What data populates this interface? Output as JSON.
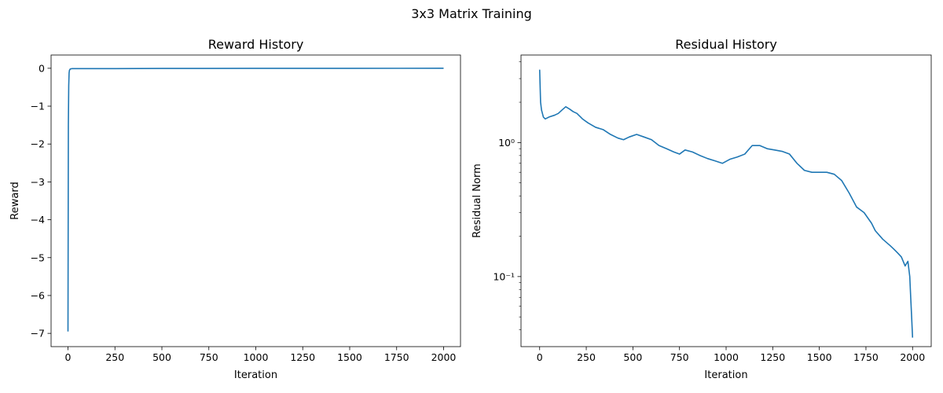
{
  "figure": {
    "suptitle": "3x3 Matrix Training"
  },
  "chart_data": [
    {
      "type": "line",
      "title": "Reward History",
      "xlabel": "Iteration",
      "ylabel": "Reward",
      "xlim": [
        -90,
        2090
      ],
      "ylim": [
        -7.35,
        0.35
      ],
      "xscale": "linear",
      "yscale": "linear",
      "xticks": [
        0,
        250,
        500,
        750,
        1000,
        1250,
        1500,
        1750,
        2000
      ],
      "xtick_labels": [
        "0",
        "250",
        "500",
        "750",
        "1000",
        "1250",
        "1500",
        "1750",
        "2000"
      ],
      "yticks": [
        0,
        -1,
        -2,
        -3,
        -4,
        -5,
        -6,
        -7
      ],
      "ytick_labels": [
        "0",
        "−1",
        "−2",
        "−3",
        "−4",
        "−5",
        "−6",
        "−7"
      ],
      "grid": false,
      "line_color": "#1f77b4",
      "series": [
        {
          "x": [
            0,
            2,
            4,
            6,
            8,
            12,
            20,
            40,
            100,
            250,
            500,
            1000,
            1500,
            2000
          ],
          "y": [
            -6.95,
            -1.5,
            -0.45,
            -0.12,
            -0.05,
            -0.02,
            -0.01,
            -0.01,
            -0.01,
            -0.01,
            -0.004,
            -0.002,
            -0.001,
            0
          ]
        }
      ]
    },
    {
      "type": "line",
      "title": "Residual History",
      "xlabel": "Iteration",
      "ylabel": "Residual Norm",
      "xlim": [
        -100,
        2100
      ],
      "ylim": [
        0.03,
        4.5
      ],
      "xscale": "linear",
      "yscale": "log",
      "xticks": [
        0,
        250,
        500,
        750,
        1000,
        1250,
        1500,
        1750,
        2000
      ],
      "xtick_labels": [
        "0",
        "250",
        "500",
        "750",
        "1000",
        "1250",
        "1500",
        "1750",
        "2000"
      ],
      "yticks": [
        0.1,
        1
      ],
      "ytick_labels": [
        "10⁻¹",
        "10⁰"
      ],
      "grid": false,
      "line_color": "#1f77b4",
      "series": [
        {
          "x": [
            0,
            5,
            10,
            20,
            30,
            50,
            80,
            100,
            120,
            140,
            160,
            180,
            200,
            230,
            260,
            300,
            340,
            380,
            420,
            450,
            480,
            520,
            560,
            600,
            640,
            680,
            720,
            750,
            780,
            820,
            860,
            900,
            940,
            980,
            1020,
            1060,
            1100,
            1140,
            1180,
            1220,
            1260,
            1300,
            1340,
            1380,
            1420,
            1460,
            1500,
            1540,
            1580,
            1620,
            1660,
            1700,
            1740,
            1780,
            1800,
            1840,
            1880,
            1900,
            1920,
            1940,
            1960,
            1975,
            1985,
            1990,
            1995,
            2000
          ],
          "y": [
            3.5,
            2.0,
            1.75,
            1.55,
            1.5,
            1.55,
            1.6,
            1.65,
            1.75,
            1.85,
            1.78,
            1.7,
            1.65,
            1.5,
            1.4,
            1.3,
            1.25,
            1.15,
            1.08,
            1.05,
            1.1,
            1.15,
            1.1,
            1.05,
            0.95,
            0.9,
            0.85,
            0.82,
            0.88,
            0.85,
            0.8,
            0.76,
            0.73,
            0.7,
            0.75,
            0.78,
            0.82,
            0.95,
            0.95,
            0.9,
            0.88,
            0.86,
            0.82,
            0.7,
            0.62,
            0.6,
            0.6,
            0.6,
            0.58,
            0.52,
            0.42,
            0.33,
            0.3,
            0.25,
            0.22,
            0.19,
            0.17,
            0.16,
            0.15,
            0.14,
            0.12,
            0.13,
            0.1,
            0.07,
            0.05,
            0.035
          ]
        }
      ]
    }
  ]
}
